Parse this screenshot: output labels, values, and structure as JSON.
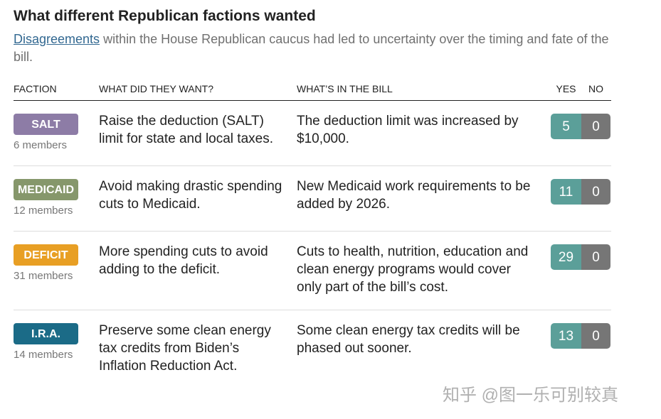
{
  "header": {
    "title": "What different Republican factions wanted",
    "subtitle_link": "Disagreements",
    "subtitle": "within the House Republican caucus had led to uncertainty over the timing and fate of the bill."
  },
  "table": {
    "columns": [
      "FACTION",
      "WHAT DID THEY WANT?",
      "WHAT’S IN THE BILL",
      "YES",
      "NO"
    ],
    "rows": [
      {
        "faction": "SALT",
        "color": "#8d7ca6",
        "members": "6 members",
        "want": "Raise the deduction (SALT) limit for state and local taxes.",
        "bill": "The deduction limit was increased by $10,000.",
        "yes": 5,
        "no": 0
      },
      {
        "faction": "MEDICAID",
        "color": "#86976b",
        "members": "12 members",
        "want": "Avoid making drastic spending cuts to Medicaid.",
        "bill": "New Medicaid work requirements to be added by 2026.",
        "yes": 11,
        "no": 0
      },
      {
        "faction": "DEFICIT",
        "color": "#e89f24",
        "members": "31 members",
        "want": "More spending cuts to avoid adding to the deficit.",
        "bill": "Cuts to health, nutrition, education and clean energy programs would cover only part of the bill’s cost.",
        "yes": 29,
        "no": 0
      },
      {
        "faction": "I.R.A.",
        "color": "#1b6b87",
        "members": "14 members",
        "want": "Preserve some clean energy tax credits from Biden’s Inflation Reduction Act.",
        "bill": "Some clean energy tax credits will be phased out sooner.",
        "yes": 13,
        "no": 0
      }
    ]
  },
  "watermark": "知乎 @图一乐可别较真"
}
